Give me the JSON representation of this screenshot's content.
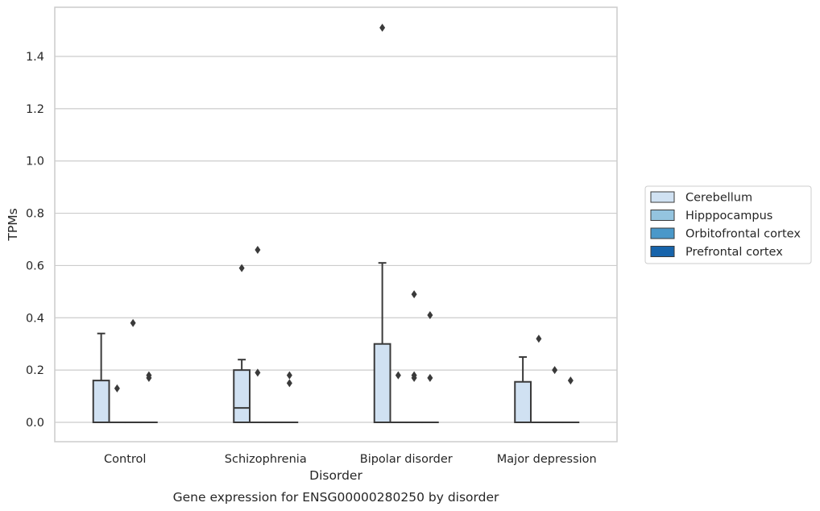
{
  "chart_data": {
    "type": "box",
    "caption": "Gene expression for ENSG00000280250 by disorder",
    "xlabel": "Disorder",
    "ylabel": "TPMs",
    "ylim": [
      -0.075,
      1.55
    ],
    "yticks": [
      0.0,
      0.2,
      0.4,
      0.6,
      0.8,
      1.0,
      1.2,
      1.4
    ],
    "ytick_labels": [
      "0.0",
      "0.2",
      "0.4",
      "0.6",
      "0.8",
      "1.0",
      "1.2",
      "1.4"
    ],
    "grid": "horizontal",
    "legend_position": "right",
    "categories": [
      "Control",
      "Schizophrenia",
      "Bipolar disorder",
      "Major depression"
    ],
    "series": [
      {
        "name": "Cerebellum",
        "color": "#d0e1f2",
        "boxes": [
          {
            "q1": 0,
            "median": 0,
            "q3": 0.16,
            "whisker_low": 0,
            "whisker_high": 0.34,
            "outliers": []
          },
          {
            "q1": 0,
            "median": 0.055,
            "q3": 0.2,
            "whisker_low": 0,
            "whisker_high": 0.24,
            "outliers": [
              0.59
            ]
          },
          {
            "q1": 0,
            "median": 0,
            "q3": 0.3,
            "whisker_low": 0,
            "whisker_high": 0.61,
            "outliers": [
              1.51
            ]
          },
          {
            "q1": 0,
            "median": 0,
            "q3": 0.155,
            "whisker_low": 0,
            "whisker_high": 0.25,
            "outliers": []
          }
        ]
      },
      {
        "name": "Hipppocampus",
        "color": "#94c4df",
        "boxes": [
          {
            "q1": 0,
            "median": 0,
            "q3": 0,
            "whisker_low": 0,
            "whisker_high": 0,
            "outliers": [
              0.13
            ]
          },
          {
            "q1": 0,
            "median": 0,
            "q3": 0,
            "whisker_low": 0,
            "whisker_high": 0,
            "outliers": [
              0.66,
              0.19
            ]
          },
          {
            "q1": 0,
            "median": 0,
            "q3": 0,
            "whisker_low": 0,
            "whisker_high": 0,
            "outliers": [
              0.18
            ]
          },
          {
            "q1": 0,
            "median": 0,
            "q3": 0,
            "whisker_low": 0,
            "whisker_high": 0,
            "outliers": [
              0.32
            ]
          }
        ]
      },
      {
        "name": "Orbitofrontal cortex",
        "color": "#4a98c9",
        "boxes": [
          {
            "q1": 0,
            "median": 0,
            "q3": 0,
            "whisker_low": 0,
            "whisker_high": 0,
            "outliers": [
              0.38
            ]
          },
          {
            "q1": 0,
            "median": 0,
            "q3": 0,
            "whisker_low": 0,
            "whisker_high": 0,
            "outliers": []
          },
          {
            "q1": 0,
            "median": 0,
            "q3": 0,
            "whisker_low": 0,
            "whisker_high": 0,
            "outliers": [
              0.49,
              0.18,
              0.17
            ]
          },
          {
            "q1": 0,
            "median": 0,
            "q3": 0,
            "whisker_low": 0,
            "whisker_high": 0,
            "outliers": [
              0.2
            ]
          }
        ]
      },
      {
        "name": "Prefrontal cortex",
        "color": "#1764ab",
        "boxes": [
          {
            "q1": 0,
            "median": 0,
            "q3": 0,
            "whisker_low": 0,
            "whisker_high": 0,
            "outliers": [
              0.18,
              0.17
            ]
          },
          {
            "q1": 0,
            "median": 0,
            "q3": 0,
            "whisker_low": 0,
            "whisker_high": 0,
            "outliers": [
              0.18,
              0.15
            ]
          },
          {
            "q1": 0,
            "median": 0,
            "q3": 0,
            "whisker_low": 0,
            "whisker_high": 0,
            "outliers": [
              0.41,
              0.17
            ]
          },
          {
            "q1": 0,
            "median": 0,
            "q3": 0,
            "whisker_low": 0,
            "whisker_high": 0,
            "outliers": [
              0.16
            ]
          }
        ]
      }
    ]
  }
}
